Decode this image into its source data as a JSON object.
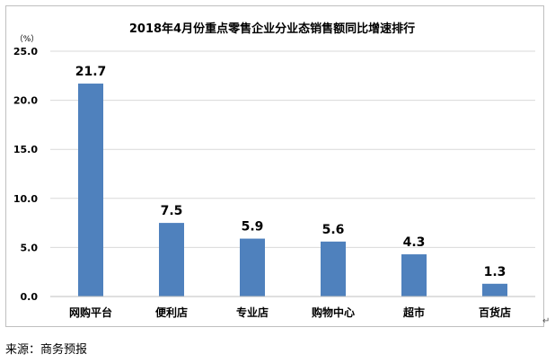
{
  "source_note": "来源：商务预报",
  "chart_data": {
    "type": "bar",
    "title": "2018年4月份重点零售企业分业态销售额同比增速排行",
    "ylabel": "（%）",
    "xlabel": "",
    "categories": [
      "网购平台",
      "便利店",
      "专业店",
      "购物中心",
      "超市",
      "百货店"
    ],
    "values": [
      21.7,
      7.5,
      5.9,
      5.6,
      4.3,
      1.3
    ],
    "data_labels": [
      "21.7",
      "7.5",
      "5.9",
      "5.6",
      "4.3",
      "1.3"
    ],
    "ylim": [
      0,
      25
    ],
    "yticks": [
      0,
      5,
      10,
      15,
      20,
      25
    ],
    "ytick_labels": [
      "0.0",
      "5.0",
      "10.0",
      "15.0",
      "20.0",
      "25.0"
    ],
    "grid": true,
    "legend": "none",
    "bar_color": "#4f81bd",
    "grid_color": "#d9d9d9"
  }
}
